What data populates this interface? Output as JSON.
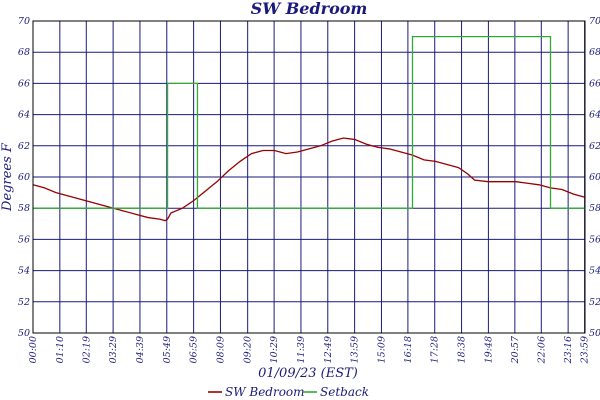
{
  "chart_data": {
    "type": "line",
    "title": "SW Bedroom",
    "xlabel": "01/09/23 (EST)",
    "ylabel": "Degrees F",
    "ylim": [
      50,
      70
    ],
    "y_ticks": [
      "50",
      "52",
      "54",
      "56",
      "58",
      "60",
      "62",
      "64",
      "66",
      "68",
      "70"
    ],
    "x_range_hours": [
      0,
      24
    ],
    "x_ticks": [
      {
        "label": "00:00",
        "h": 0
      },
      {
        "label": "01:10",
        "h": 1.1667
      },
      {
        "label": "02:19",
        "h": 2.3167
      },
      {
        "label": "03:29",
        "h": 3.4833
      },
      {
        "label": "04:39",
        "h": 4.65
      },
      {
        "label": "05:49",
        "h": 5.8167
      },
      {
        "label": "06:59",
        "h": 6.9833
      },
      {
        "label": "08:09",
        "h": 8.15
      },
      {
        "label": "09:20",
        "h": 9.3333
      },
      {
        "label": "10:29",
        "h": 10.4833
      },
      {
        "label": "11:39",
        "h": 11.65
      },
      {
        "label": "12:49",
        "h": 12.8167
      },
      {
        "label": "13:59",
        "h": 13.9833
      },
      {
        "label": "15:09",
        "h": 15.15
      },
      {
        "label": "16:18",
        "h": 16.3
      },
      {
        "label": "17:28",
        "h": 17.4667
      },
      {
        "label": "18:38",
        "h": 18.6333
      },
      {
        "label": "19:48",
        "h": 19.8
      },
      {
        "label": "20:57",
        "h": 20.95
      },
      {
        "label": "22:06",
        "h": 22.1
      },
      {
        "label": "23:16",
        "h": 23.2667
      },
      {
        "label": "23:59",
        "h": 23.9833
      }
    ],
    "grid": true,
    "legend_position": "bottom-center",
    "series": [
      {
        "name": "SW Bedroom",
        "color": "#990000",
        "points": [
          [
            0.0,
            59.5
          ],
          [
            0.5,
            59.3
          ],
          [
            1.0,
            59.0
          ],
          [
            1.5,
            58.8
          ],
          [
            2.0,
            58.6
          ],
          [
            2.5,
            58.4
          ],
          [
            3.0,
            58.2
          ],
          [
            3.5,
            58.0
          ],
          [
            4.0,
            57.8
          ],
          [
            4.5,
            57.6
          ],
          [
            5.0,
            57.4
          ],
          [
            5.5,
            57.3
          ],
          [
            5.75,
            57.2
          ],
          [
            5.85,
            57.3
          ],
          [
            6.0,
            57.7
          ],
          [
            6.5,
            58.0
          ],
          [
            7.0,
            58.5
          ],
          [
            7.5,
            59.1
          ],
          [
            8.0,
            59.7
          ],
          [
            8.5,
            60.4
          ],
          [
            9.0,
            61.0
          ],
          [
            9.5,
            61.5
          ],
          [
            10.0,
            61.7
          ],
          [
            10.5,
            61.7
          ],
          [
            11.0,
            61.5
          ],
          [
            11.5,
            61.6
          ],
          [
            12.0,
            61.8
          ],
          [
            12.5,
            62.0
          ],
          [
            13.0,
            62.3
          ],
          [
            13.5,
            62.5
          ],
          [
            14.0,
            62.4
          ],
          [
            14.5,
            62.1
          ],
          [
            15.0,
            61.9
          ],
          [
            15.5,
            61.8
          ],
          [
            16.0,
            61.6
          ],
          [
            16.5,
            61.4
          ],
          [
            17.0,
            61.1
          ],
          [
            17.5,
            61.0
          ],
          [
            18.0,
            60.8
          ],
          [
            18.5,
            60.6
          ],
          [
            18.9,
            60.2
          ],
          [
            19.2,
            59.8
          ],
          [
            19.8,
            59.7
          ],
          [
            20.5,
            59.7
          ],
          [
            21.0,
            59.7
          ],
          [
            21.5,
            59.6
          ],
          [
            22.0,
            59.5
          ],
          [
            22.5,
            59.3
          ],
          [
            23.0,
            59.2
          ],
          [
            23.5,
            58.9
          ],
          [
            24.0,
            58.7
          ]
        ]
      },
      {
        "name": "Setback",
        "color": "#33aa33",
        "points": [
          [
            0.0,
            58
          ],
          [
            5.85,
            58
          ],
          [
            5.85,
            66
          ],
          [
            7.15,
            66
          ],
          [
            7.15,
            58
          ],
          [
            16.5,
            58
          ],
          [
            16.5,
            69
          ],
          [
            22.5,
            69
          ],
          [
            22.5,
            58
          ],
          [
            24.0,
            58
          ]
        ]
      }
    ]
  }
}
